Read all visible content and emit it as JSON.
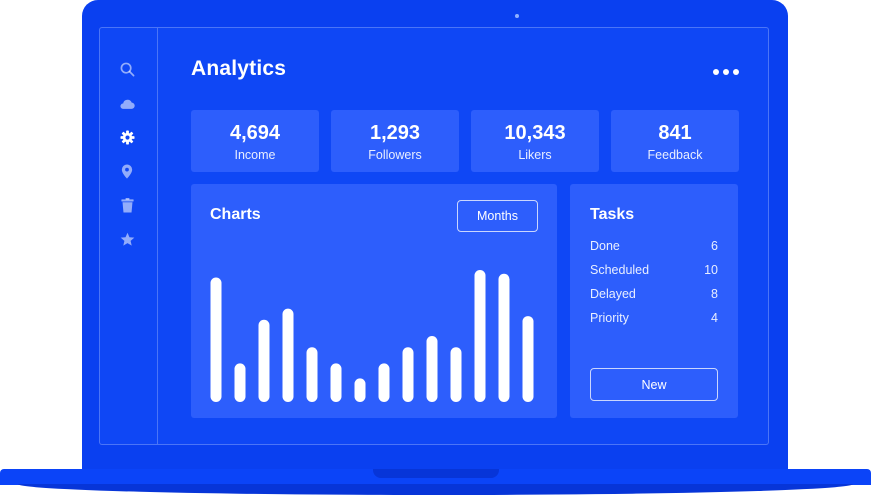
{
  "header": {
    "title": "Analytics"
  },
  "sidebar": {
    "icons": [
      "search-icon",
      "cloud-icon",
      "gear-icon",
      "location-pin-icon",
      "trash-icon",
      "star-icon"
    ],
    "active": "gear-icon"
  },
  "stats": [
    {
      "value": "4,694",
      "label": "Income"
    },
    {
      "value": "1,293",
      "label": "Followers"
    },
    {
      "value": "10,343",
      "label": "Likers"
    },
    {
      "value": "841",
      "label": "Feedback"
    }
  ],
  "charts": {
    "title": "Charts",
    "period_button": "Months"
  },
  "chart_data": {
    "type": "bar",
    "values": [
      100,
      31,
      66,
      75,
      44,
      31,
      19,
      31,
      44,
      53,
      44,
      106,
      103,
      69
    ],
    "color": "#ffffff",
    "grid": false
  },
  "tasks": {
    "title": "Tasks",
    "items": [
      {
        "label": "Done",
        "count": "6"
      },
      {
        "label": "Scheduled",
        "count": "10"
      },
      {
        "label": "Delayed",
        "count": "8"
      },
      {
        "label": "Priority",
        "count": "4"
      }
    ],
    "new_button": "New"
  },
  "colors": {
    "lid": "#0a40f0",
    "screen": "#0f47f5",
    "card": "#2d5efc",
    "text": "#ffffff"
  }
}
